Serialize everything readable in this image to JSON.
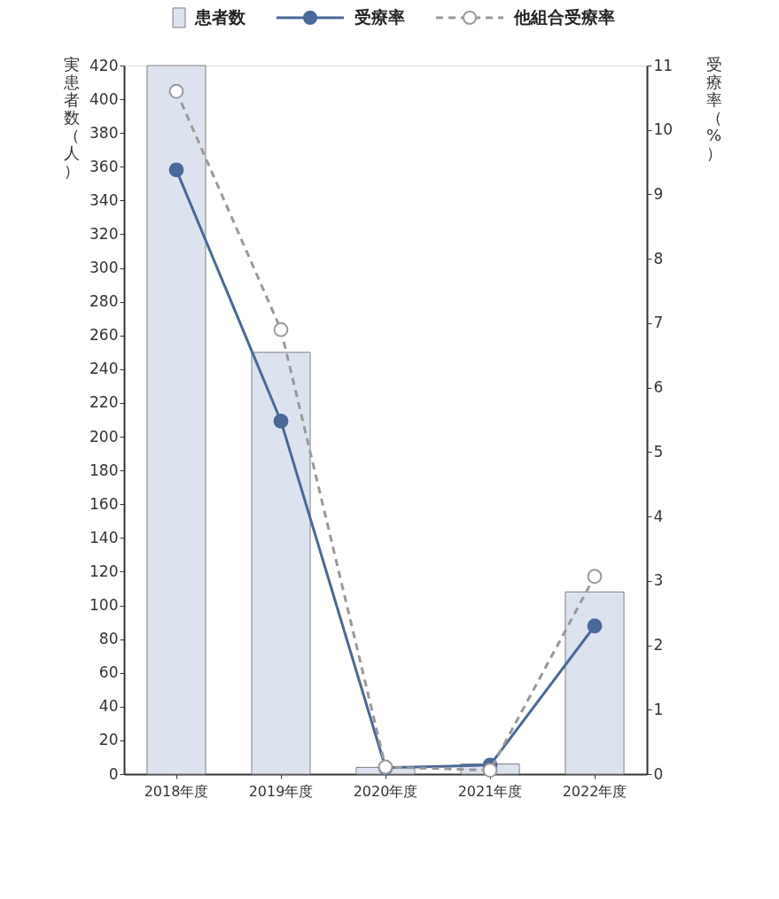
{
  "chart_data": {
    "type": "bar",
    "categories": [
      "2018年度",
      "2019年度",
      "2020年度",
      "2021年度",
      "2022年度"
    ],
    "ylabel": "実患者数（人）",
    "y2label": "受療率（%）",
    "ylim": [
      0,
      420
    ],
    "yticks": [
      0,
      20,
      40,
      60,
      80,
      100,
      120,
      140,
      160,
      180,
      200,
      220,
      240,
      260,
      280,
      300,
      320,
      340,
      360,
      380,
      400,
      420
    ],
    "y2lim": [
      0,
      11
    ],
    "y2ticks": [
      0,
      1,
      2,
      3,
      4,
      5,
      6,
      7,
      8,
      9,
      10,
      11
    ],
    "legend": "top",
    "grid": false,
    "series": [
      {
        "name": "患者数",
        "color": "#dde3ee",
        "values": [
          420,
          250,
          4,
          6,
          108
        ]
      },
      {
        "name": "受療率",
        "type": "line",
        "axis": "y2",
        "color": "#4a6899",
        "marker": "circle",
        "line_style": "solid",
        "values": [
          9.38,
          5.48,
          0.1,
          0.14,
          2.3
        ]
      },
      {
        "name": "他組合受療率",
        "type": "line",
        "axis": "y2",
        "color": "#999999",
        "marker": "circle",
        "line_style": "dashed",
        "values": [
          10.6,
          6.9,
          0.11,
          0.06,
          3.07
        ]
      }
    ]
  }
}
